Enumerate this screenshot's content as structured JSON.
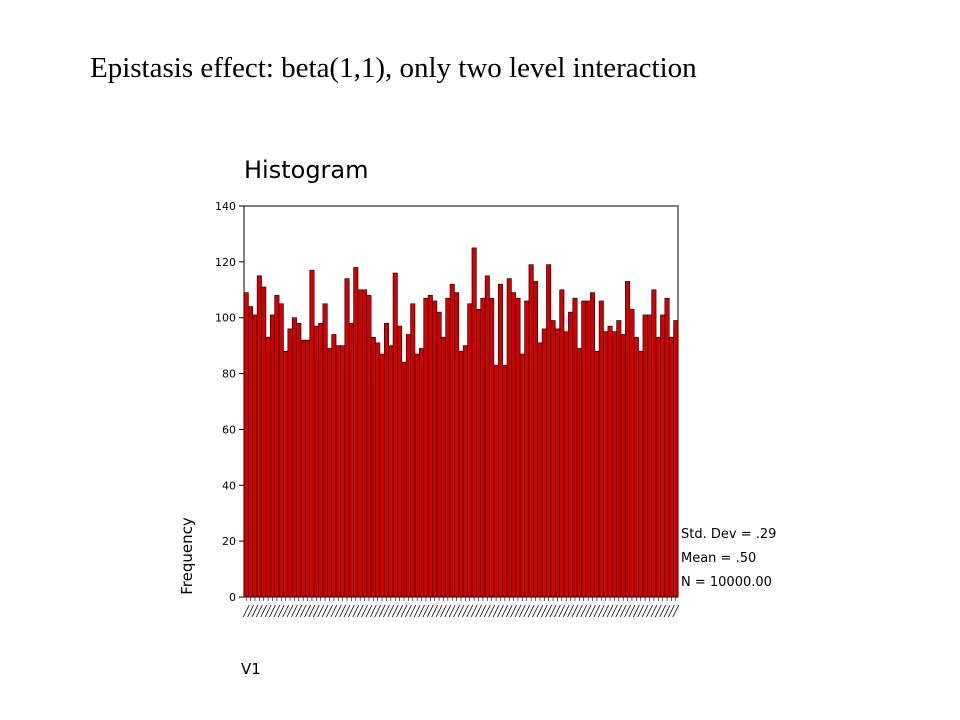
{
  "slide_title": "Epistasis effect: beta(1,1), only two level interaction",
  "colors": {
    "bar_fill": "#d40000",
    "bar_stroke": "#000000",
    "axis": "#000000"
  },
  "chart_data": {
    "type": "bar",
    "title": "Histogram",
    "xlabel": "V1",
    "ylabel": "Frequency",
    "ylim": [
      0,
      140
    ],
    "yticks": [
      0,
      20,
      40,
      60,
      80,
      100,
      120,
      140
    ],
    "grid": false,
    "stats": {
      "std_dev": "Std. Dev = .29",
      "mean": "Mean = .50",
      "n": "N = 10000.00"
    },
    "values": [
      109,
      104,
      101,
      115,
      111,
      93,
      101,
      108,
      105,
      88,
      96,
      100,
      98,
      92,
      92,
      117,
      97,
      98,
      105,
      89,
      94,
      90,
      90,
      114,
      98,
      118,
      110,
      110,
      108,
      93,
      91,
      87,
      98,
      90,
      116,
      97,
      84,
      94,
      105,
      87,
      89,
      107,
      108,
      106,
      102,
      93,
      107,
      112,
      109,
      88,
      90,
      105,
      125,
      103,
      107,
      115,
      107,
      83,
      112,
      83,
      114,
      109,
      107,
      87,
      106,
      119,
      113,
      91,
      96,
      119,
      99,
      96,
      110,
      95,
      102,
      107,
      89,
      106,
      106,
      109,
      88,
      106,
      95,
      97,
      95,
      99,
      94,
      113,
      103,
      93,
      88,
      101,
      101,
      110,
      93,
      101,
      107,
      93,
      99
    ]
  }
}
